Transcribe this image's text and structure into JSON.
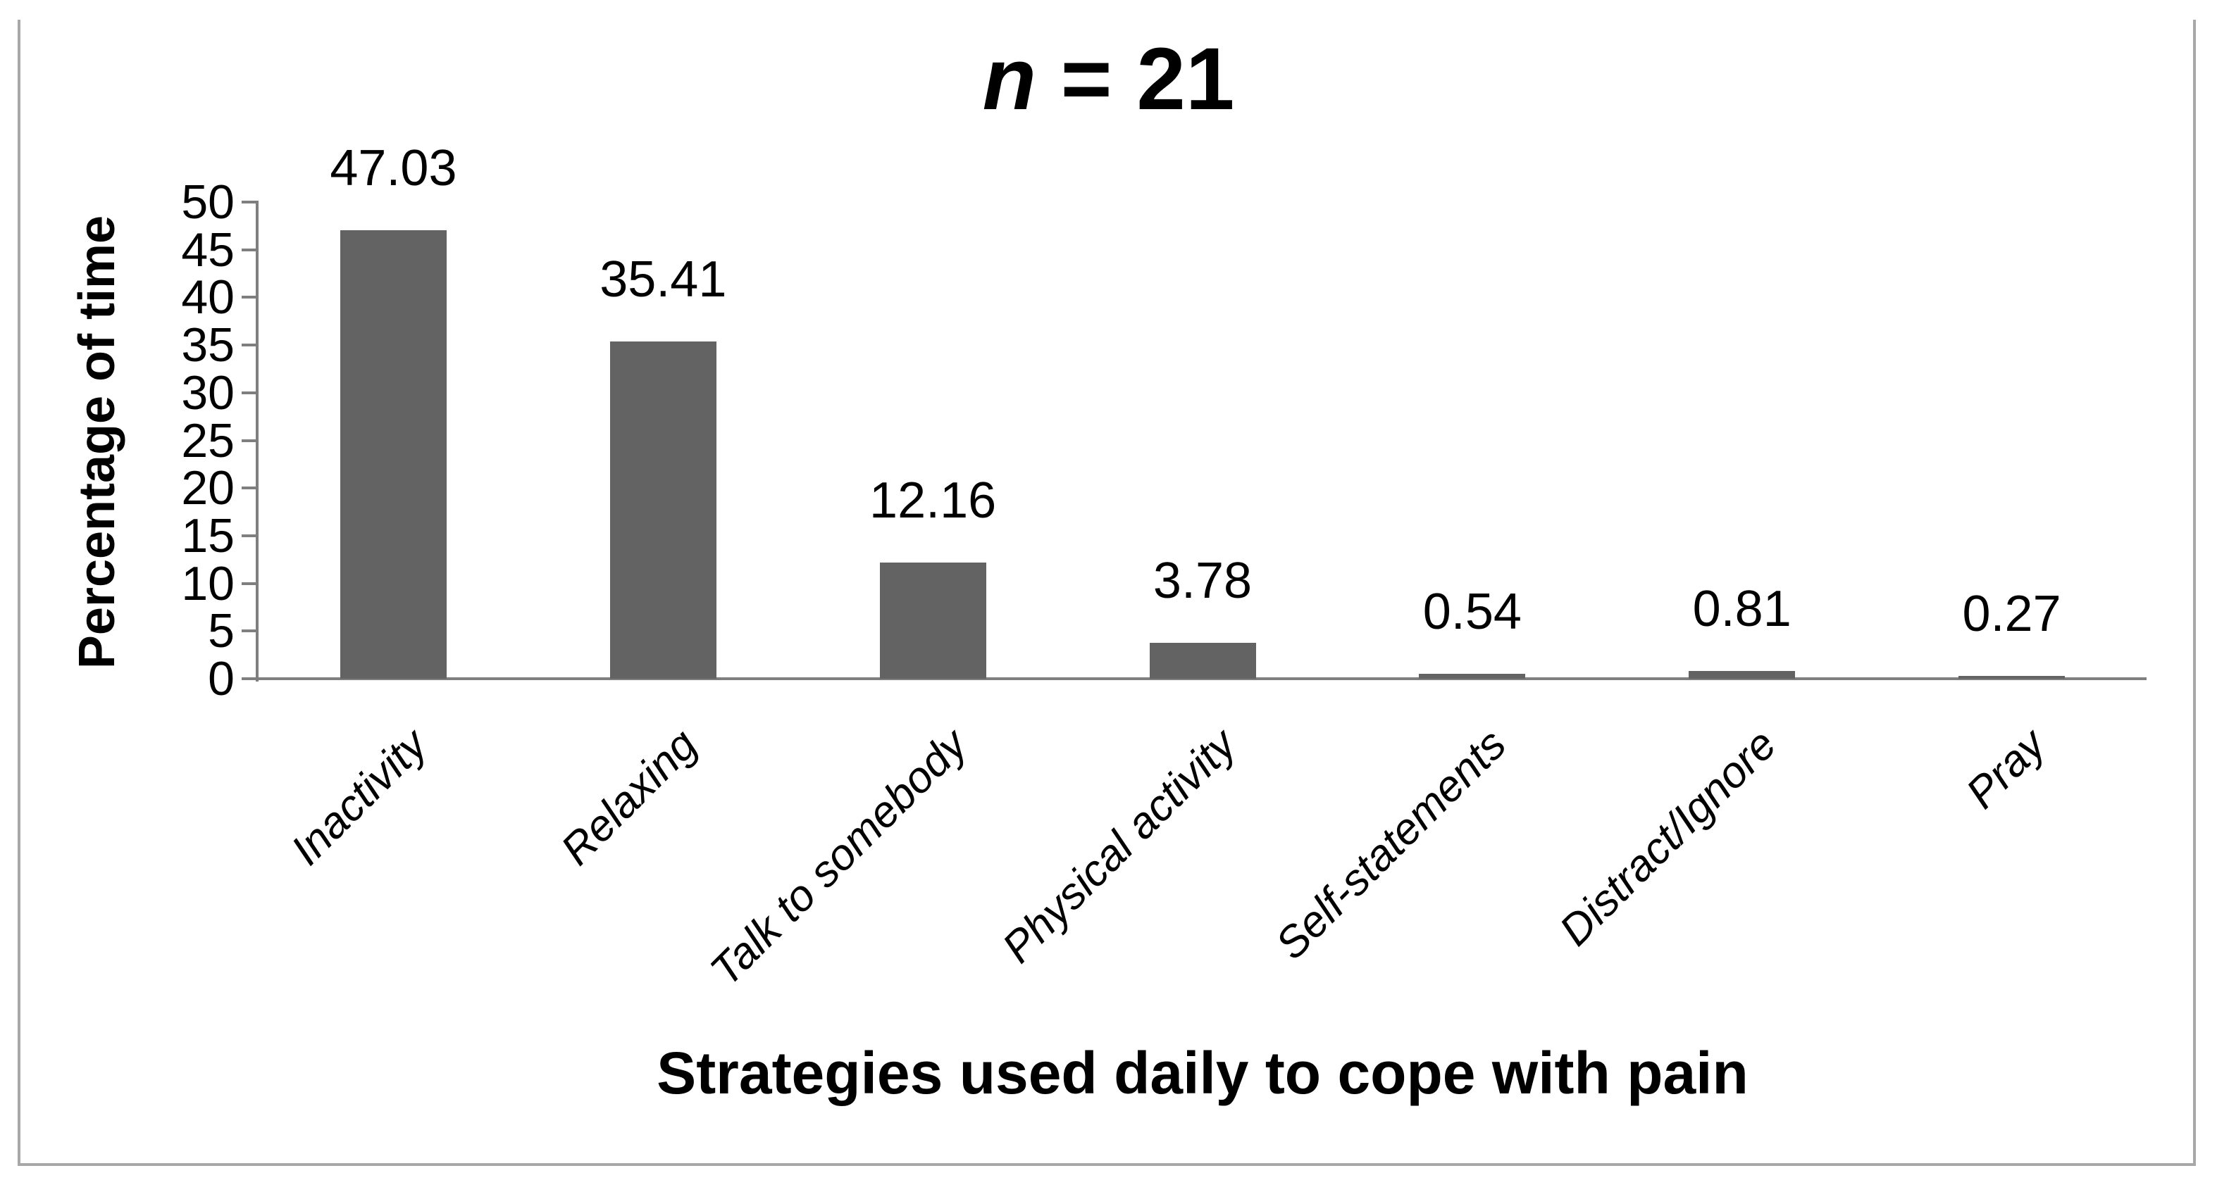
{
  "figure": {
    "title": {
      "full": "n = 21",
      "italic_part": "n",
      "rest_part": "= 21"
    },
    "colors": {
      "bar": "#636363",
      "axis": "#7f7f7f",
      "border": "#a8a8a8",
      "text": "#000000",
      "background": "#ffffff"
    }
  },
  "chart_data": {
    "type": "bar",
    "title": "n = 21",
    "xlabel": "Strategies used daily to cope with pain",
    "ylabel": "Percentage of time",
    "categories": [
      "Inactivity",
      "Relaxing",
      "Talk to somebody",
      "Physical activity",
      "Self-statements",
      "Distract/Ignore",
      "Pray"
    ],
    "values": [
      47.03,
      35.41,
      12.16,
      3.78,
      0.54,
      0.81,
      0.27
    ],
    "data_labels": [
      "47.03",
      "35.41",
      "12.16",
      "3.78",
      "0.54",
      "0.81",
      "0.27"
    ],
    "ylim": [
      0,
      50
    ],
    "ytick_step": 5,
    "ytick_labels": [
      "50",
      "45",
      "40",
      "35",
      "30",
      "25",
      "20",
      "15",
      "10",
      "5",
      "0"
    ],
    "grid": false,
    "legend": false,
    "bar_color": "#636363",
    "category_label_rotation_deg": 45,
    "category_label_style": "italic"
  }
}
